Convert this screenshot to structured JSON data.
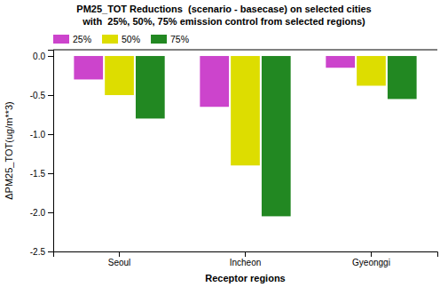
{
  "chart_data": {
    "type": "bar",
    "title": "PM25_TOT Reductions  (scenario - basecase) on selected cities",
    "subtitle": "with  25%, 50%, 75% emission control from selected regions)",
    "x_label": "Receptor regions",
    "y_label": "ΔPM25_TOT(ug/m**3)",
    "categories": [
      "Seoul",
      "Incheon",
      "Gyeonggi"
    ],
    "series": [
      {
        "name": "25%",
        "color": "#cc44cc",
        "values": [
          -0.3,
          -0.65,
          -0.15
        ]
      },
      {
        "name": "50%",
        "color": "#dddd00",
        "values": [
          -0.5,
          -1.4,
          -0.38
        ]
      },
      {
        "name": "75%",
        "color": "#228822",
        "values": [
          -0.8,
          -2.05,
          -0.55
        ]
      }
    ],
    "ylim": [
      -2.5,
      0.08
    ],
    "yticks": [
      {
        "value": 0.0,
        "label": "0.0"
      },
      -0.5,
      {
        "value": -1.0,
        "label": "-1.0"
      },
      -1.5,
      {
        "value": -2.0,
        "label": "-2.0"
      },
      -2.5
    ],
    "grid": false,
    "legend": "top-left"
  }
}
